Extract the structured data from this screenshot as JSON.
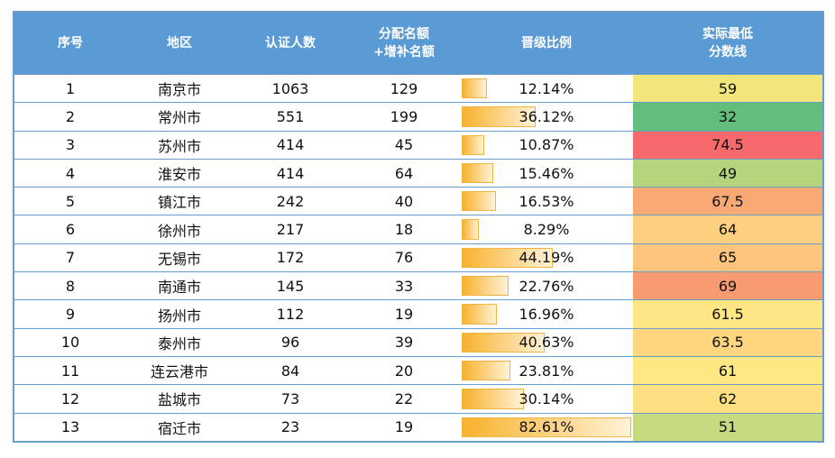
{
  "chart_data": {
    "type": "table",
    "columns": [
      "序号",
      "地区",
      "认证人数",
      "分配名额\n+增补名额",
      "晋级比例",
      "实际最低\n分数线"
    ],
    "rows": [
      {
        "no": "1",
        "region": "南京市",
        "certified": "1063",
        "quota": "129",
        "ratio": "12.14%",
        "ratio_value": 12.14,
        "score": "59",
        "color": "#f1e57c"
      },
      {
        "no": "2",
        "region": "常州市",
        "certified": "551",
        "quota": "199",
        "ratio": "36.12%",
        "ratio_value": 36.12,
        "score": "32",
        "color": "#63be7b"
      },
      {
        "no": "3",
        "region": "苏州市",
        "certified": "414",
        "quota": "45",
        "ratio": "10.87%",
        "ratio_value": 10.87,
        "score": "74.5",
        "color": "#f8696b"
      },
      {
        "no": "4",
        "region": "淮安市",
        "certified": "414",
        "quota": "64",
        "ratio": "15.46%",
        "ratio_value": 15.46,
        "score": "49",
        "color": "#b5d57d"
      },
      {
        "no": "5",
        "region": "镇江市",
        "certified": "242",
        "quota": "40",
        "ratio": "16.53%",
        "ratio_value": 16.53,
        "score": "67.5",
        "color": "#f9a973"
      },
      {
        "no": "6",
        "region": "徐州市",
        "certified": "217",
        "quota": "18",
        "ratio": "8.29%",
        "ratio_value": 8.29,
        "score": "64",
        "color": "#fdd07f"
      },
      {
        "no": "7",
        "region": "无锡市",
        "certified": "172",
        "quota": "76",
        "ratio": "44.19%",
        "ratio_value": 44.19,
        "score": "65",
        "color": "#fcc47c"
      },
      {
        "no": "8",
        "region": "南通市",
        "certified": "145",
        "quota": "33",
        "ratio": "22.76%",
        "ratio_value": 22.76,
        "score": "69",
        "color": "#f99b70"
      },
      {
        "no": "9",
        "region": "扬州市",
        "certified": "112",
        "quota": "19",
        "ratio": "16.96%",
        "ratio_value": 16.96,
        "score": "61.5",
        "color": "#fde683"
      },
      {
        "no": "10",
        "region": "泰州市",
        "certified": "96",
        "quota": "39",
        "ratio": "40.63%",
        "ratio_value": 40.63,
        "score": "63.5",
        "color": "#fed680"
      },
      {
        "no": "11",
        "region": "连云港市",
        "certified": "84",
        "quota": "20",
        "ratio": "23.81%",
        "ratio_value": 23.81,
        "score": "61",
        "color": "#ffe784"
      },
      {
        "no": "12",
        "region": "盐城市",
        "certified": "73",
        "quota": "22",
        "ratio": "30.14%",
        "ratio_value": 30.14,
        "score": "62",
        "color": "#fee082"
      },
      {
        "no": "13",
        "region": "宿迁市",
        "certified": "23",
        "quota": "19",
        "ratio": "82.61%",
        "ratio_value": 82.61,
        "score": "51",
        "color": "#c6da80"
      }
    ]
  }
}
